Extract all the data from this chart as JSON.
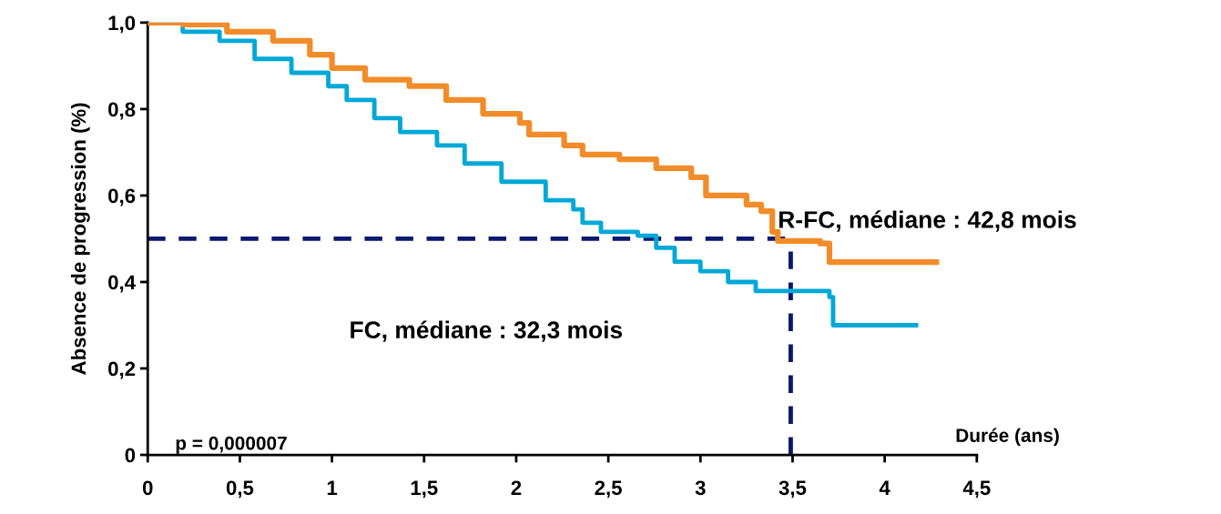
{
  "chart_data": {
    "type": "step",
    "xlabel": "Durée (ans)",
    "ylabel": "Absence de progression (%)",
    "xlim": [
      0,
      4.5
    ],
    "ylim": [
      0,
      1
    ],
    "xticks": [
      0,
      {
        "value": 0.5,
        "label": "0,5"
      },
      1,
      {
        "value": 1.5,
        "label": "1,5"
      },
      2,
      {
        "value": 2.5,
        "label": "2,5"
      },
      3,
      {
        "value": 3.5,
        "label": "3,5"
      },
      4,
      {
        "value": 4.5,
        "label": "4,5"
      }
    ],
    "yticks": [
      0,
      {
        "value": 0.2,
        "label": "0,2"
      },
      {
        "value": 0.4,
        "label": "0,4"
      },
      {
        "value": 0.6,
        "label": "0,6"
      },
      {
        "value": 0.8,
        "label": "0,8"
      },
      {
        "value": 1.0,
        "label": "1,0"
      }
    ],
    "grid": false,
    "legend": false,
    "line_style": "solid",
    "marker": "none",
    "series": [
      {
        "color": "#f28c28",
        "x": [
          0,
          0.19,
          0.43,
          0.68,
          0.88,
          1.0,
          1.18,
          1.42,
          1.62,
          1.82,
          2.02,
          2.07,
          2.26,
          2.36,
          2.56,
          2.76,
          2.95,
          3.03,
          3.25,
          3.33,
          3.39,
          3.42,
          3.65,
          3.7,
          4.28
        ],
        "values": [
          1.0,
          0.996,
          0.979,
          0.958,
          0.926,
          0.895,
          0.868,
          0.853,
          0.821,
          0.789,
          0.768,
          0.741,
          0.716,
          0.695,
          0.684,
          0.663,
          0.642,
          0.6,
          0.579,
          0.564,
          0.516,
          0.495,
          0.489,
          0.446,
          0.446
        ]
      },
      {
        "color": "#00a8d8",
        "x": [
          0,
          0.19,
          0.39,
          0.58,
          0.78,
          0.98,
          1.08,
          1.23,
          1.37,
          1.57,
          1.72,
          1.92,
          2.16,
          2.31,
          2.36,
          2.46,
          2.66,
          2.76,
          2.86,
          3.0,
          3.15,
          3.3,
          3.7,
          3.72,
          4.17
        ],
        "values": [
          1.0,
          0.979,
          0.958,
          0.916,
          0.884,
          0.853,
          0.821,
          0.779,
          0.747,
          0.716,
          0.674,
          0.632,
          0.589,
          0.568,
          0.537,
          0.516,
          0.507,
          0.479,
          0.447,
          0.425,
          0.4,
          0.379,
          0.365,
          0.3,
          0.3
        ]
      }
    ],
    "ref_lines": [
      {
        "axis": "y",
        "value": 0.5,
        "color": "#0a1a6e",
        "line_style": "dashed"
      },
      {
        "axis": "x",
        "value": 3.49,
        "color": "#0a1a6e",
        "line_style": "dashed"
      }
    ],
    "annotations": [
      "R-FC, médiane : 42,8 mois",
      "FC, médiane : 32,3 mois",
      "p = 0,000007"
    ]
  }
}
